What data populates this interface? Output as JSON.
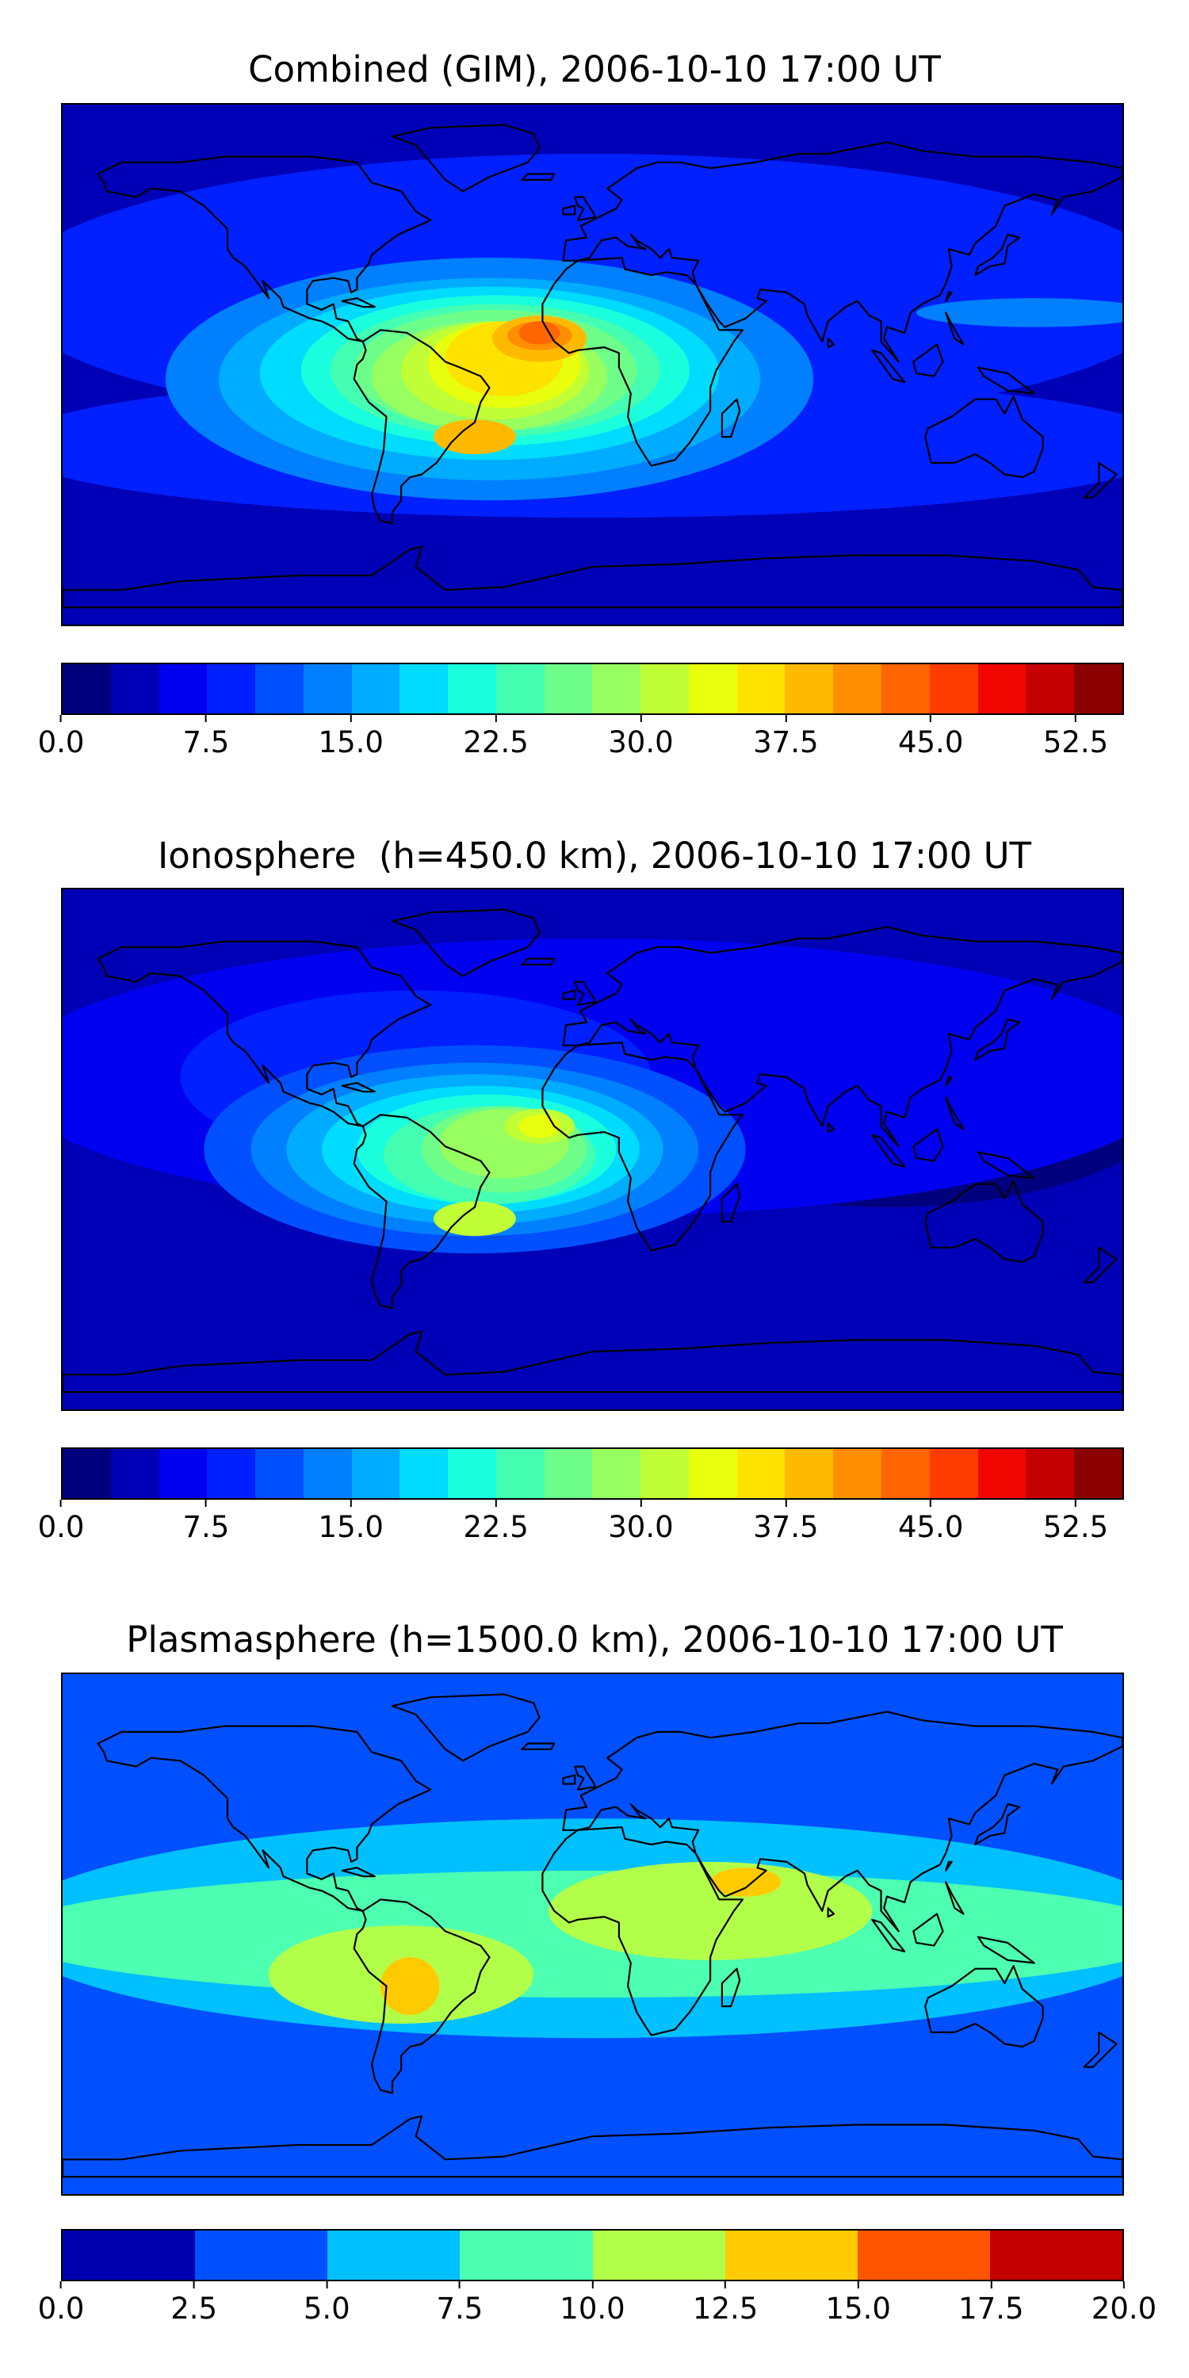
{
  "figure": {
    "colors": {
      "base": "#0000a8",
      "coast": "#000000",
      "levels25": [
        "#00007f",
        "#0000b6",
        "#0000f1",
        "#0020ff",
        "#0050ff",
        "#0080ff",
        "#00acff",
        "#00dcff",
        "#1affdd",
        "#44ffb2",
        "#6dff8a",
        "#97ff60",
        "#c0ff36",
        "#e8ff0d",
        "#ffe200",
        "#ffba00",
        "#ff8f00",
        "#ff6500",
        "#ff3c00",
        "#f10700",
        "#c40000",
        "#8b0000"
      ],
      "levels8": [
        "#0000b0",
        "#0050ff",
        "#00c0ff",
        "#4dffb0",
        "#b2ff4a",
        "#ffcb00",
        "#ff5500",
        "#c40000"
      ]
    },
    "panels": [
      {
        "id": "combined",
        "title": "Combined (GIM), 2006-10-10 17:00 UT",
        "colorbar": {
          "levels": 22,
          "scale": "levels25",
          "ticks": [
            "0.0",
            "7.5",
            "15.0",
            "22.5",
            "30.0",
            "37.5",
            "45.0",
            "52.5"
          ],
          "tick_values": [
            0,
            7.5,
            15,
            22.5,
            30,
            37.5,
            45,
            52.5
          ],
          "range": [
            0,
            55
          ]
        }
      },
      {
        "id": "ionosphere",
        "title": "Ionosphere  (h=450.0 km), 2006-10-10 17:00 UT",
        "colorbar": {
          "levels": 22,
          "scale": "levels25",
          "ticks": [
            "0.0",
            "7.5",
            "15.0",
            "22.5",
            "30.0",
            "37.5",
            "45.0",
            "52.5"
          ],
          "tick_values": [
            0,
            7.5,
            15,
            22.5,
            30,
            37.5,
            45,
            52.5
          ],
          "range": [
            0,
            55
          ]
        }
      },
      {
        "id": "plasmasphere",
        "title": "Plasmasphere (h=1500.0 km), 2006-10-10 17:00 UT",
        "colorbar": {
          "levels": 8,
          "scale": "levels8",
          "ticks": [
            "0.0",
            "2.5",
            "5.0",
            "7.5",
            "10.0",
            "12.5",
            "15.0",
            "17.5",
            "20.0"
          ],
          "tick_values": [
            0,
            2.5,
            5,
            7.5,
            10,
            12.5,
            15,
            17.5,
            20
          ],
          "range": [
            0,
            20
          ]
        }
      }
    ]
  },
  "chart_data": [
    {
      "type": "heatmap",
      "title": "Combined (GIM), 2006-10-10 17:00 UT",
      "projection": "plate-carree world map with coastlines",
      "colorbar_ticks": [
        0,
        7.5,
        15,
        22.5,
        30,
        37.5,
        45,
        52.5
      ],
      "colorbar_range": [
        0,
        55
      ],
      "colorbar_levels": 22,
      "regions": [
        {
          "name": "background",
          "value": 6
        },
        {
          "name": "mid-latitude band",
          "value": 11
        },
        {
          "name": "anomaly envelope",
          "value": 20,
          "lon": -35,
          "lat": 0
        },
        {
          "name": "anomaly",
          "value": 28,
          "lon": -30,
          "lat": 2
        },
        {
          "name": "crest",
          "value": 35,
          "lon": -35,
          "lat": -8
        },
        {
          "name": "south crest",
          "value": 40,
          "lon": -45,
          "lat": -25
        },
        {
          "name": "north crest",
          "value": 42,
          "lon": -18,
          "lat": 9
        },
        {
          "name": "peak",
          "value": 47,
          "lon": -18,
          "lat": 11
        }
      ]
    },
    {
      "type": "heatmap",
      "title": "Ionosphere  (h=450.0 km), 2006-10-10 17:00 UT",
      "projection": "plate-carree world map with coastlines",
      "colorbar_ticks": [
        0,
        7.5,
        15,
        22.5,
        30,
        37.5,
        45,
        52.5
      ],
      "colorbar_range": [
        0,
        55
      ],
      "colorbar_levels": 22,
      "regions": [
        {
          "name": "background",
          "value": 4
        },
        {
          "name": "mid-latitude band",
          "value": 8
        },
        {
          "name": "anomaly envelope",
          "value": 14,
          "lon": -40,
          "lat": 0
        },
        {
          "name": "anomaly",
          "value": 22,
          "lon": -40,
          "lat": 0
        },
        {
          "name": "crest",
          "value": 27,
          "lon": -35,
          "lat": -8
        },
        {
          "name": "south crest",
          "value": 30,
          "lon": -40,
          "lat": -25
        },
        {
          "name": "peak",
          "value": 34,
          "lon": -18,
          "lat": 8
        }
      ]
    },
    {
      "type": "heatmap",
      "title": "Plasmasphere (h=1500.0 km), 2006-10-10 17:00 UT",
      "projection": "plate-carree world map with coastlines",
      "colorbar_ticks": [
        0,
        2.5,
        5,
        7.5,
        10,
        12.5,
        15,
        17.5,
        20
      ],
      "colorbar_range": [
        0,
        20
      ],
      "colorbar_levels": 8,
      "regions": [
        {
          "name": "polar regions",
          "value": 2
        },
        {
          "name": "mid-latitude band",
          "value": 4
        },
        {
          "name": "equatorial band",
          "value": 6
        },
        {
          "name": "low-latitude band",
          "value": 9
        },
        {
          "name": "americas maximum",
          "value": 11,
          "lon": -65,
          "lat": -15
        },
        {
          "name": "africa-asia maximum",
          "value": 11,
          "lon": 40,
          "lat": 10
        },
        {
          "name": "south america peak",
          "value": 14,
          "lon": -62,
          "lat": -18
        },
        {
          "name": "arabian sea peak",
          "value": 14,
          "lon": 52,
          "lat": 18
        }
      ]
    }
  ]
}
